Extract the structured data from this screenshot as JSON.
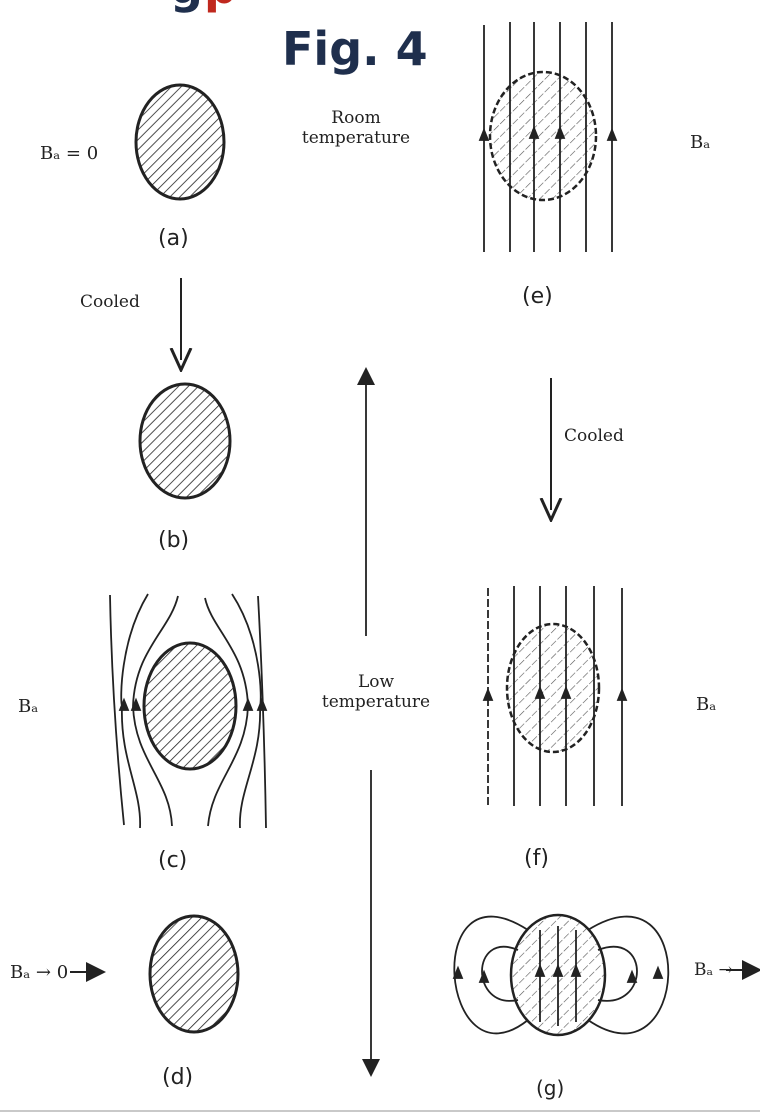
{
  "header": {
    "banner_start": "g",
    "banner_accent": "p",
    "figure_title": "Fig. 4"
  },
  "labels": {
    "a_field": "Bₐ = 0",
    "room_temp_line1": "Room",
    "room_temp_line2": "temperature",
    "e_field": "Bₐ",
    "cooled_left": "Cooled",
    "cooled_right": "Cooled",
    "c_field": "Bₐ",
    "low_temp_line1": "Low",
    "low_temp_line2": "temperature",
    "f_field": "Bₐ",
    "d_field": "Bₐ → 0",
    "g_field": "Bₐ →"
  },
  "captions": {
    "a": "(a)",
    "b": "(b)",
    "c": "(c)",
    "d": "(d)",
    "e": "(e)",
    "f": "(f)",
    "g": "(g)"
  },
  "colors": {
    "title": "#1f2f4d",
    "accent": "#c0281e",
    "ink": "#222222"
  }
}
